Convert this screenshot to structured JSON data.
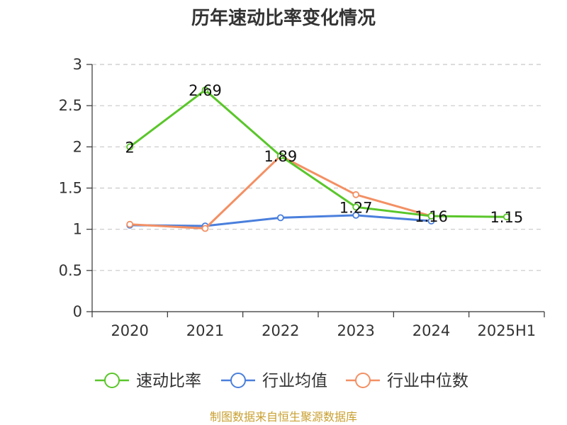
{
  "chart_data": {
    "type": "line",
    "title": "历年速动比率变化情况",
    "categories": [
      "2020",
      "2021",
      "2022",
      "2023",
      "2024",
      "2025H1"
    ],
    "ylim": [
      0,
      3
    ],
    "yticks": [
      "0",
      "0.5",
      "1",
      "1.5",
      "2",
      "2.5",
      "3"
    ],
    "grid": true,
    "legend_position": "bottom",
    "series": [
      {
        "name": "速动比率",
        "color": "#5ac62a",
        "values": [
          2,
          2.69,
          1.89,
          1.27,
          1.16,
          1.15
        ],
        "labels": [
          "2",
          "2.69",
          "1.89",
          "1.27",
          "1.16",
          "1.15"
        ]
      },
      {
        "name": "行业均值",
        "color": "#4a7fdc",
        "values": [
          1.05,
          1.04,
          1.14,
          1.17,
          1.1,
          null
        ]
      },
      {
        "name": "行业中位数",
        "color": "#f39064",
        "values": [
          1.06,
          1.01,
          1.89,
          1.42,
          1.16,
          null
        ]
      }
    ],
    "source": "制图数据来自恒生聚源数据库"
  }
}
